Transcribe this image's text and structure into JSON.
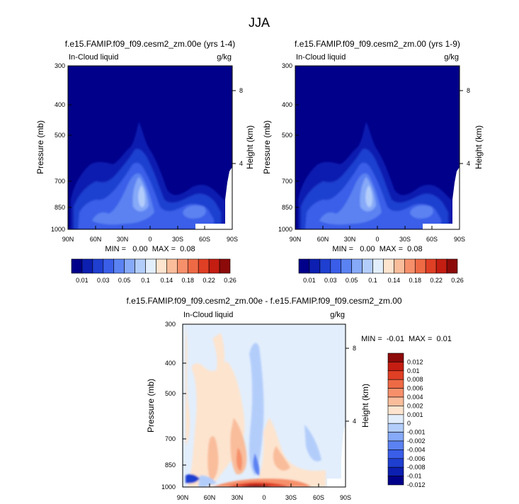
{
  "page_title": "JJA",
  "chart_data": [
    {
      "type": "heatmap",
      "title": "f.e15.FAMIP.f09_f09.cesm2_zm.00e (yrs 1-4)",
      "left_label": "In-Cloud liquid",
      "right_label": "g/kg",
      "xlabel": "",
      "ylabel": "Pressure (mb)",
      "ylabel_right": "Height (km)",
      "x_ticks": [
        "90N",
        "60N",
        "30N",
        "0",
        "30S",
        "60S",
        "90S"
      ],
      "y_ticks": [
        "300",
        "400",
        "500",
        "700",
        "850",
        "1000"
      ],
      "y_ticks_right": [
        "8",
        "4"
      ],
      "ylim": [
        1000,
        300
      ],
      "y_scale": "log",
      "stats": "MIN =   0.00  MAX =  0.08",
      "min": 0.0,
      "max": 0.08,
      "colormap": "levels_abs"
    },
    {
      "type": "heatmap",
      "title": "f.e15.FAMIP.f09_f09.cesm2_zm.00 (yrs 1-9)",
      "left_label": "In-Cloud liquid",
      "right_label": "g/kg",
      "xlabel": "",
      "ylabel": "Pressure (mb)",
      "ylabel_right": "Height (km)",
      "x_ticks": [
        "90N",
        "60N",
        "30N",
        "0",
        "30S",
        "60S",
        "90S"
      ],
      "y_ticks": [
        "300",
        "400",
        "500",
        "700",
        "850",
        "1000"
      ],
      "y_ticks_right": [
        "8",
        "4"
      ],
      "ylim": [
        1000,
        300
      ],
      "y_scale": "log",
      "stats": "MIN =   0.00  MAX =  0.08",
      "min": 0.0,
      "max": 0.08,
      "colormap": "levels_abs"
    },
    {
      "type": "heatmap",
      "title": "f.e15.FAMIP.f09_f09.cesm2_zm.00e - f.e15.FAMIP.f09_f09.cesm2_zm.00",
      "left_label": "In-Cloud liquid",
      "right_label": "g/kg",
      "xlabel": "",
      "ylabel": "Pressure (mb)",
      "ylabel_right": "Height (km)",
      "x_ticks": [
        "90N",
        "60N",
        "30N",
        "0",
        "30S",
        "60S",
        "90S"
      ],
      "y_ticks": [
        "300",
        "400",
        "500",
        "700",
        "850",
        "1000"
      ],
      "y_ticks_right": [
        "8",
        "4"
      ],
      "ylim": [
        1000,
        300
      ],
      "y_scale": "log",
      "stats": "MIN =  -0.01  MAX =  0.01",
      "min": -0.01,
      "max": 0.01,
      "colormap": "levels_diff"
    }
  ],
  "colorbars": {
    "abs": {
      "orientation": "horizontal",
      "colors": [
        "#00008a",
        "#0c1fb0",
        "#1f3fd0",
        "#3a5ee8",
        "#5b82f2",
        "#86a9f8",
        "#b3cdfb",
        "#e2eefc",
        "#fde4cf",
        "#f9bd9b",
        "#f6906b",
        "#ee6a45",
        "#df3f25",
        "#c41d12",
        "#8c0a0a"
      ],
      "labels": [
        "0.01",
        "0.03",
        "0.05",
        "0.1",
        "0.14",
        "0.18",
        "0.22",
        "0.26"
      ]
    },
    "diff": {
      "orientation": "vertical",
      "colors": [
        "#8c0a0a",
        "#c41d12",
        "#df3f25",
        "#ee6a45",
        "#f6906b",
        "#f9bd9b",
        "#fde4cf",
        "#e2eefc",
        "#b3cdfb",
        "#86a9f8",
        "#5b82f2",
        "#3a5ee8",
        "#1f3fd0",
        "#0c1fb0",
        "#00008a"
      ],
      "labels": [
        "0.012",
        "0.01",
        "0.008",
        "0.006",
        "0.004",
        "0.002",
        "0.001",
        "0",
        "-0.001",
        "-0.002",
        "-0.004",
        "-0.006",
        "-0.008",
        "-0.01",
        "-0.012"
      ]
    }
  }
}
